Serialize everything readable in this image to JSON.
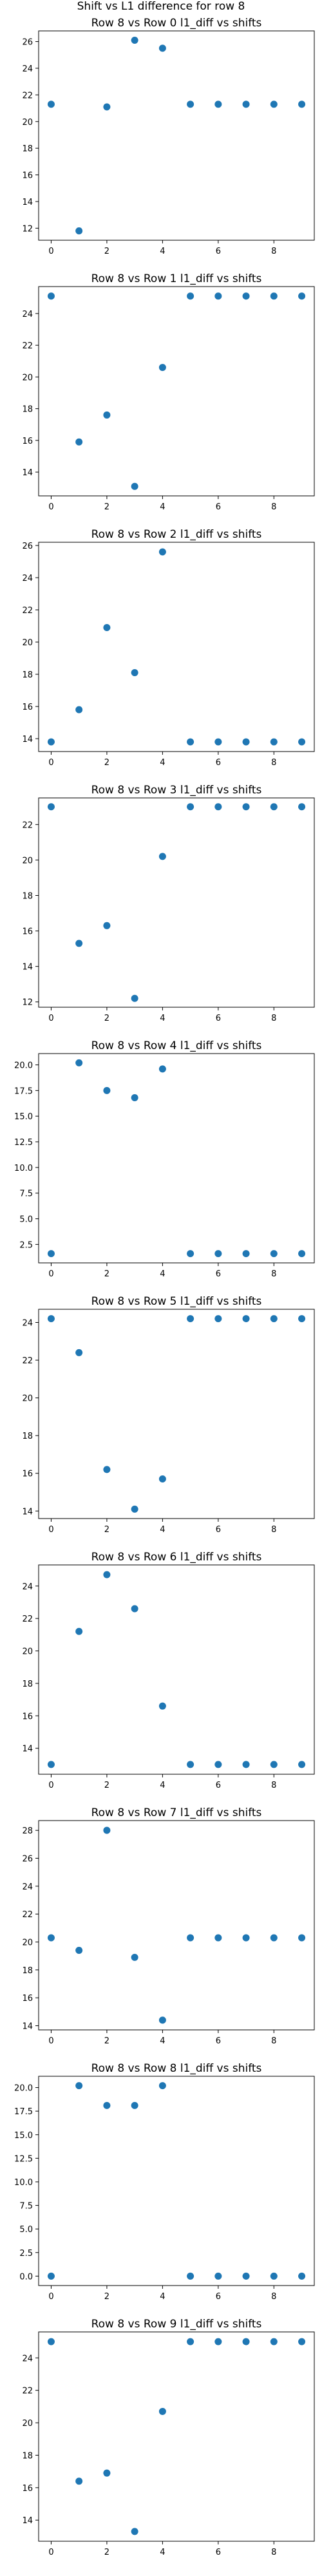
{
  "suptitle": "Shift vs L1 difference for row 8",
  "colors": {
    "marker": "#1f77b4",
    "axis": "#000000",
    "background": "#ffffff"
  },
  "chart_data": [
    {
      "type": "scatter",
      "title": "Row 8 vs Row 0 l1_diff vs shifts",
      "x": [
        0,
        1,
        2,
        3,
        4,
        5,
        6,
        7,
        8,
        9
      ],
      "y": [
        21.3,
        11.8,
        21.1,
        26.1,
        25.5,
        21.3,
        21.3,
        21.3,
        21.3,
        21.3
      ],
      "xticks": [
        0,
        2,
        4,
        6,
        8
      ],
      "yticks": [
        12,
        14,
        16,
        18,
        20,
        22,
        24,
        26
      ],
      "xlim": [
        -0.45,
        9.45
      ],
      "ylim": [
        11.1,
        26.8
      ],
      "grid": false
    },
    {
      "type": "scatter",
      "title": "Row 8 vs Row 1 l1_diff vs shifts",
      "x": [
        0,
        1,
        2,
        3,
        4,
        5,
        6,
        7,
        8,
        9
      ],
      "y": [
        25.1,
        15.9,
        17.6,
        13.1,
        20.6,
        25.1,
        25.1,
        25.1,
        25.1,
        25.1
      ],
      "xticks": [
        0,
        2,
        4,
        6,
        8
      ],
      "yticks": [
        14,
        16,
        18,
        20,
        22,
        24
      ],
      "xlim": [
        -0.45,
        9.45
      ],
      "ylim": [
        12.5,
        25.7
      ],
      "grid": false
    },
    {
      "type": "scatter",
      "title": "Row 8 vs Row 2 l1_diff vs shifts",
      "x": [
        0,
        1,
        2,
        3,
        4,
        5,
        6,
        7,
        8,
        9
      ],
      "y": [
        13.8,
        15.8,
        20.9,
        18.1,
        25.6,
        13.8,
        13.8,
        13.8,
        13.8,
        13.8
      ],
      "xticks": [
        0,
        2,
        4,
        6,
        8
      ],
      "yticks": [
        14,
        16,
        18,
        20,
        22,
        24,
        26
      ],
      "xlim": [
        -0.45,
        9.45
      ],
      "ylim": [
        13.2,
        26.2
      ],
      "grid": false
    },
    {
      "type": "scatter",
      "title": "Row 8 vs Row 3 l1_diff vs shifts",
      "x": [
        0,
        1,
        2,
        3,
        4,
        5,
        6,
        7,
        8,
        9
      ],
      "y": [
        23.0,
        15.3,
        16.3,
        12.2,
        20.2,
        23.0,
        23.0,
        23.0,
        23.0,
        23.0
      ],
      "xticks": [
        0,
        2,
        4,
        6,
        8
      ],
      "yticks": [
        12,
        14,
        16,
        18,
        20,
        22
      ],
      "xlim": [
        -0.45,
        9.45
      ],
      "ylim": [
        11.7,
        23.5
      ],
      "grid": false
    },
    {
      "type": "scatter",
      "title": "Row 8 vs Row 4 l1_diff vs shifts",
      "x": [
        0,
        1,
        2,
        3,
        4,
        5,
        6,
        7,
        8,
        9
      ],
      "y": [
        1.6,
        20.2,
        17.5,
        16.8,
        19.6,
        1.6,
        1.6,
        1.6,
        1.6,
        1.6
      ],
      "xticks": [
        0,
        2,
        4,
        6,
        8
      ],
      "yticks": [
        2.5,
        5.0,
        7.5,
        10.0,
        12.5,
        15.0,
        17.5,
        20.0
      ],
      "ytick_labels": [
        "2.5",
        "5.0",
        "7.5",
        "10.0",
        "12.5",
        "15.0",
        "17.5",
        "20.0"
      ],
      "xlim": [
        -0.45,
        9.45
      ],
      "ylim": [
        0.7,
        21.1
      ],
      "grid": false
    },
    {
      "type": "scatter",
      "title": "Row 8 vs Row 5 l1_diff vs shifts",
      "x": [
        0,
        1,
        2,
        3,
        4,
        5,
        6,
        7,
        8,
        9
      ],
      "y": [
        24.2,
        22.4,
        16.2,
        14.1,
        15.7,
        24.2,
        24.2,
        24.2,
        24.2,
        24.2
      ],
      "xticks": [
        0,
        2,
        4,
        6,
        8
      ],
      "yticks": [
        14,
        16,
        18,
        20,
        22,
        24
      ],
      "xlim": [
        -0.45,
        9.45
      ],
      "ylim": [
        13.6,
        24.7
      ],
      "grid": false
    },
    {
      "type": "scatter",
      "title": "Row 8 vs Row 6 l1_diff vs shifts",
      "x": [
        0,
        1,
        2,
        3,
        4,
        5,
        6,
        7,
        8,
        9
      ],
      "y": [
        13.0,
        21.2,
        24.7,
        22.6,
        16.6,
        13.0,
        13.0,
        13.0,
        13.0,
        13.0
      ],
      "xticks": [
        0,
        2,
        4,
        6,
        8
      ],
      "yticks": [
        14,
        16,
        18,
        20,
        22,
        24
      ],
      "xlim": [
        -0.45,
        9.45
      ],
      "ylim": [
        12.4,
        25.3
      ],
      "grid": false
    },
    {
      "type": "scatter",
      "title": "Row 8 vs Row 7 l1_diff vs shifts",
      "x": [
        0,
        1,
        2,
        3,
        4,
        5,
        6,
        7,
        8,
        9
      ],
      "y": [
        20.3,
        19.4,
        28.0,
        18.9,
        14.4,
        20.3,
        20.3,
        20.3,
        20.3,
        20.3
      ],
      "xticks": [
        0,
        2,
        4,
        6,
        8
      ],
      "yticks": [
        14,
        16,
        18,
        20,
        22,
        24,
        26,
        28
      ],
      "xlim": [
        -0.45,
        9.45
      ],
      "ylim": [
        13.7,
        28.7
      ],
      "grid": false
    },
    {
      "type": "scatter",
      "title": "Row 8 vs Row 8 l1_diff vs shifts",
      "x": [
        0,
        1,
        2,
        3,
        4,
        5,
        6,
        7,
        8,
        9
      ],
      "y": [
        0.0,
        20.2,
        18.1,
        18.1,
        20.2,
        0.0,
        0.0,
        0.0,
        0.0,
        0.0
      ],
      "xticks": [
        0,
        2,
        4,
        6,
        8
      ],
      "yticks": [
        0.0,
        2.5,
        5.0,
        7.5,
        10.0,
        12.5,
        15.0,
        17.5,
        20.0
      ],
      "ytick_labels": [
        "0.0",
        "2.5",
        "5.0",
        "7.5",
        "10.0",
        "12.5",
        "15.0",
        "17.5",
        "20.0"
      ],
      "xlim": [
        -0.45,
        9.45
      ],
      "ylim": [
        -1.0,
        21.2
      ],
      "grid": false
    },
    {
      "type": "scatter",
      "title": "Row 8 vs Row 9 l1_diff vs shifts",
      "x": [
        0,
        1,
        2,
        3,
        4,
        5,
        6,
        7,
        8,
        9
      ],
      "y": [
        25.0,
        16.4,
        16.9,
        13.3,
        20.7,
        25.0,
        25.0,
        25.0,
        25.0,
        25.0
      ],
      "xticks": [
        0,
        2,
        4,
        6,
        8
      ],
      "yticks": [
        14,
        16,
        18,
        20,
        22,
        24
      ],
      "xlim": [
        -0.45,
        9.45
      ],
      "ylim": [
        12.7,
        25.6
      ],
      "grid": false
    }
  ]
}
